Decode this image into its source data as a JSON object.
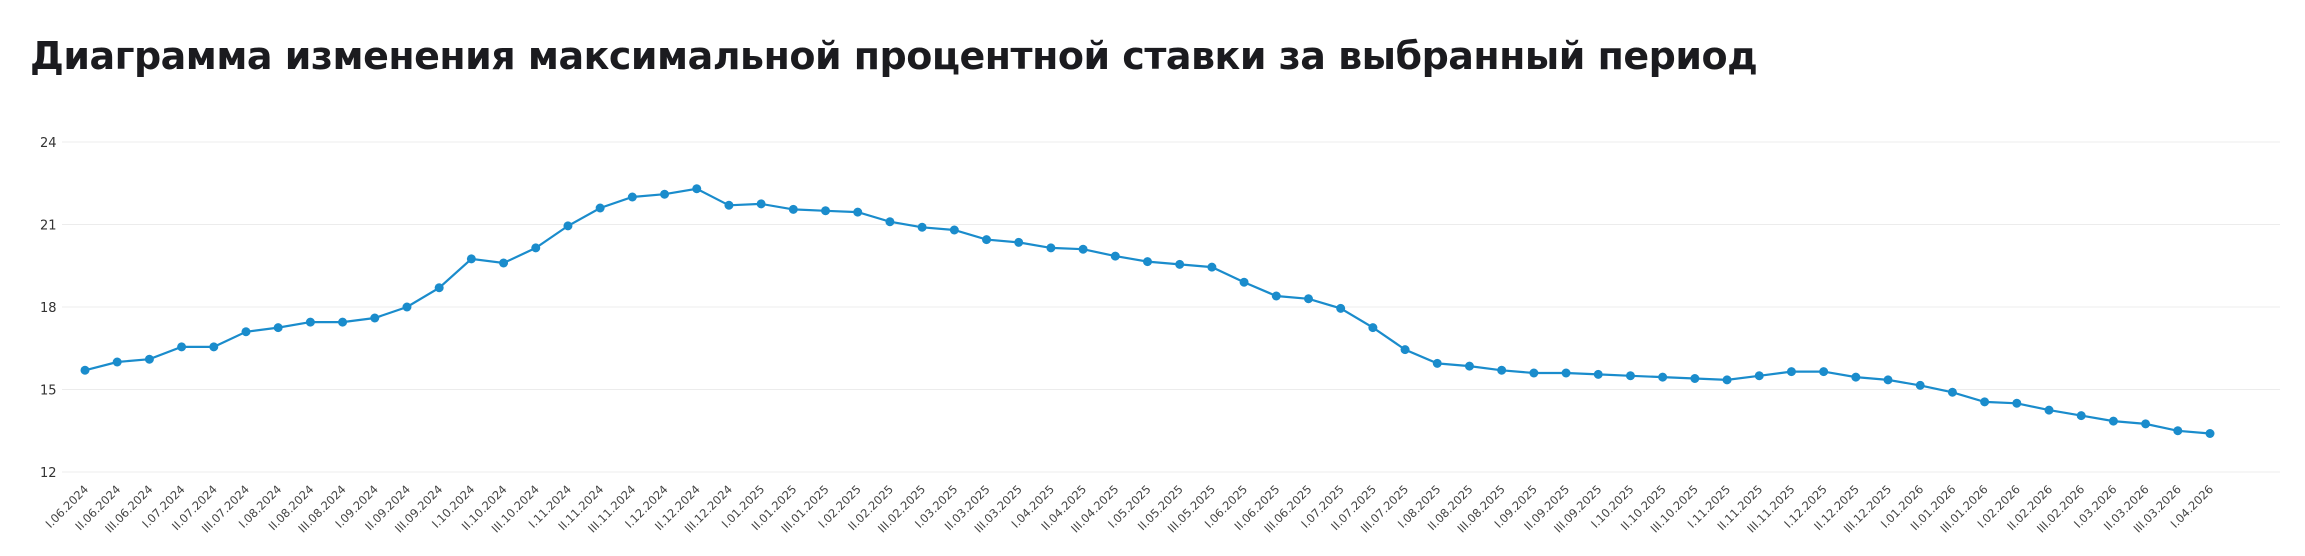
{
  "title": "Диаграмма изменения максимальной процентной ставки за выбранный период",
  "chart_data": {
    "type": "line",
    "title": "Диаграмма изменения максимальной процентной ставки за выбранный период",
    "xlabel": "",
    "ylabel": "",
    "ylim": [
      12,
      24
    ],
    "yticks": [
      12,
      15,
      18,
      21,
      24
    ],
    "grid": true,
    "legend": "none",
    "color": "#1a8ccc",
    "categories": [
      "I.06.2024",
      "II.06.2024",
      "III.06.2024",
      "I.07.2024",
      "II.07.2024",
      "III.07.2024",
      "I.08.2024",
      "II.08.2024",
      "III.08.2024",
      "I.09.2024",
      "II.09.2024",
      "III.09.2024",
      "I.10.2024",
      "II.10.2024",
      "III.10.2024",
      "I.11.2024",
      "II.11.2024",
      "III.11.2024",
      "I.12.2024",
      "II.12.2024",
      "III.12.2024",
      "I.01.2025",
      "II.01.2025",
      "III.01.2025",
      "I.02.2025",
      "II.02.2025",
      "III.02.2025",
      "I.03.2025",
      "II.03.2025",
      "III.03.2025",
      "I.04.2025",
      "II.04.2025",
      "III.04.2025",
      "I.05.2025",
      "II.05.2025",
      "III.05.2025",
      "I.06.2025",
      "II.06.2025",
      "III.06.2025",
      "I.07.2025",
      "II.07.2025",
      "III.07.2025",
      "I.08.2025",
      "II.08.2025",
      "III.08.2025",
      "I.09.2025",
      "II.09.2025",
      "III.09.2025",
      "I.10.2025",
      "II.10.2025",
      "III.10.2025",
      "I.11.2025",
      "II.11.2025",
      "III.11.2025",
      "I.12.2025",
      "II.12.2025",
      "III.12.2025",
      "I.01.2026",
      "II.01.2026",
      "III.01.2026",
      "I.02.2026",
      "II.02.2026",
      "III.02.2026",
      "I.03.2026",
      "II.03.2026",
      "III.03.2026",
      "I.04.2026"
    ],
    "values": [
      15.7,
      16.0,
      16.1,
      16.55,
      16.55,
      17.1,
      17.25,
      17.45,
      17.45,
      17.6,
      18.0,
      18.7,
      19.75,
      19.6,
      20.15,
      20.95,
      21.6,
      22.0,
      22.1,
      22.3,
      21.7,
      21.75,
      21.55,
      21.5,
      21.45,
      21.1,
      20.9,
      20.8,
      20.45,
      20.35,
      20.15,
      20.1,
      19.85,
      19.65,
      19.55,
      19.45,
      18.9,
      18.4,
      18.3,
      17.95,
      17.25,
      16.45,
      15.95,
      15.85,
      15.7,
      15.6,
      15.6,
      15.55,
      15.5,
      15.45,
      15.4,
      15.35,
      15.5,
      15.65,
      15.65,
      15.45,
      15.35,
      15.15,
      14.9,
      14.55,
      14.5,
      14.25,
      14.05,
      13.85,
      13.75,
      13.5,
      13.4
    ]
  }
}
